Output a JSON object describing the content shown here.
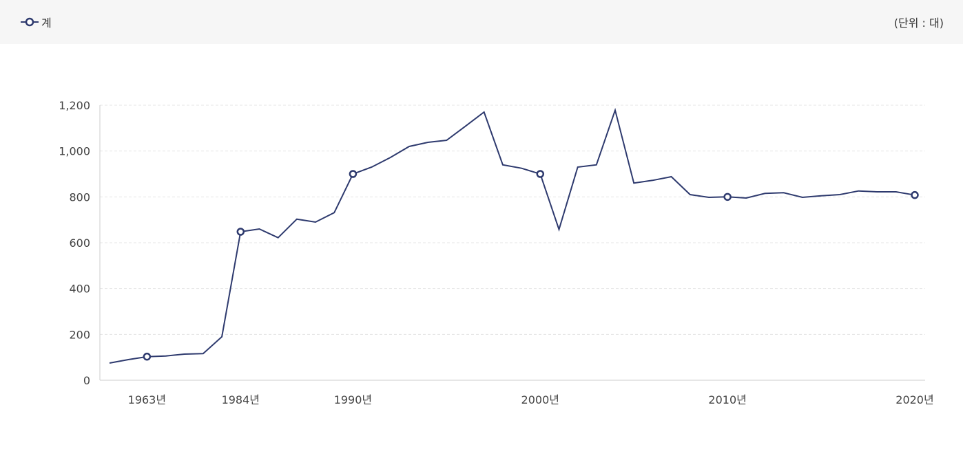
{
  "legend": {
    "series_name": "계",
    "unit": "(단위 : 대)"
  },
  "colors": {
    "line": "#2e3a6e",
    "grid": "#e4e4e4",
    "axis": "#cccccc",
    "header_bg": "#f6f6f6"
  },
  "chart_data": {
    "type": "line",
    "ylim": [
      0,
      1200
    ],
    "yticks": [
      0,
      200,
      400,
      600,
      800,
      1000,
      1200
    ],
    "ytick_labels": [
      "0",
      "200",
      "400",
      "600",
      "800",
      "1,000",
      "1,200"
    ],
    "grid": true,
    "legend_position": "top-left",
    "x_tick_labels": [
      "1963년",
      "1984년",
      "1990년",
      "2000년",
      "2010년",
      "2020년"
    ],
    "series": [
      {
        "name": "계",
        "values": [
          75,
          90,
          103,
          106,
          114,
          116,
          190,
          648,
          660,
          622,
          703,
          690,
          731,
          900,
          930,
          972,
          1020,
          1038,
          1047,
          1108,
          1170,
          940,
          925,
          900,
          658,
          930,
          940,
          1178,
          860,
          872,
          888,
          810,
          798,
          800,
          795,
          815,
          818,
          798,
          805,
          810,
          826,
          822,
          822,
          808
        ],
        "markers": [
          {
            "label": "1963년",
            "index": 2
          },
          {
            "label": "1984년",
            "index": 7
          },
          {
            "label": "1990년",
            "index": 13
          },
          {
            "label": "2000년",
            "index": 23
          },
          {
            "label": "2010년",
            "index": 33
          },
          {
            "label": "2020년",
            "index": 43
          }
        ]
      }
    ]
  }
}
